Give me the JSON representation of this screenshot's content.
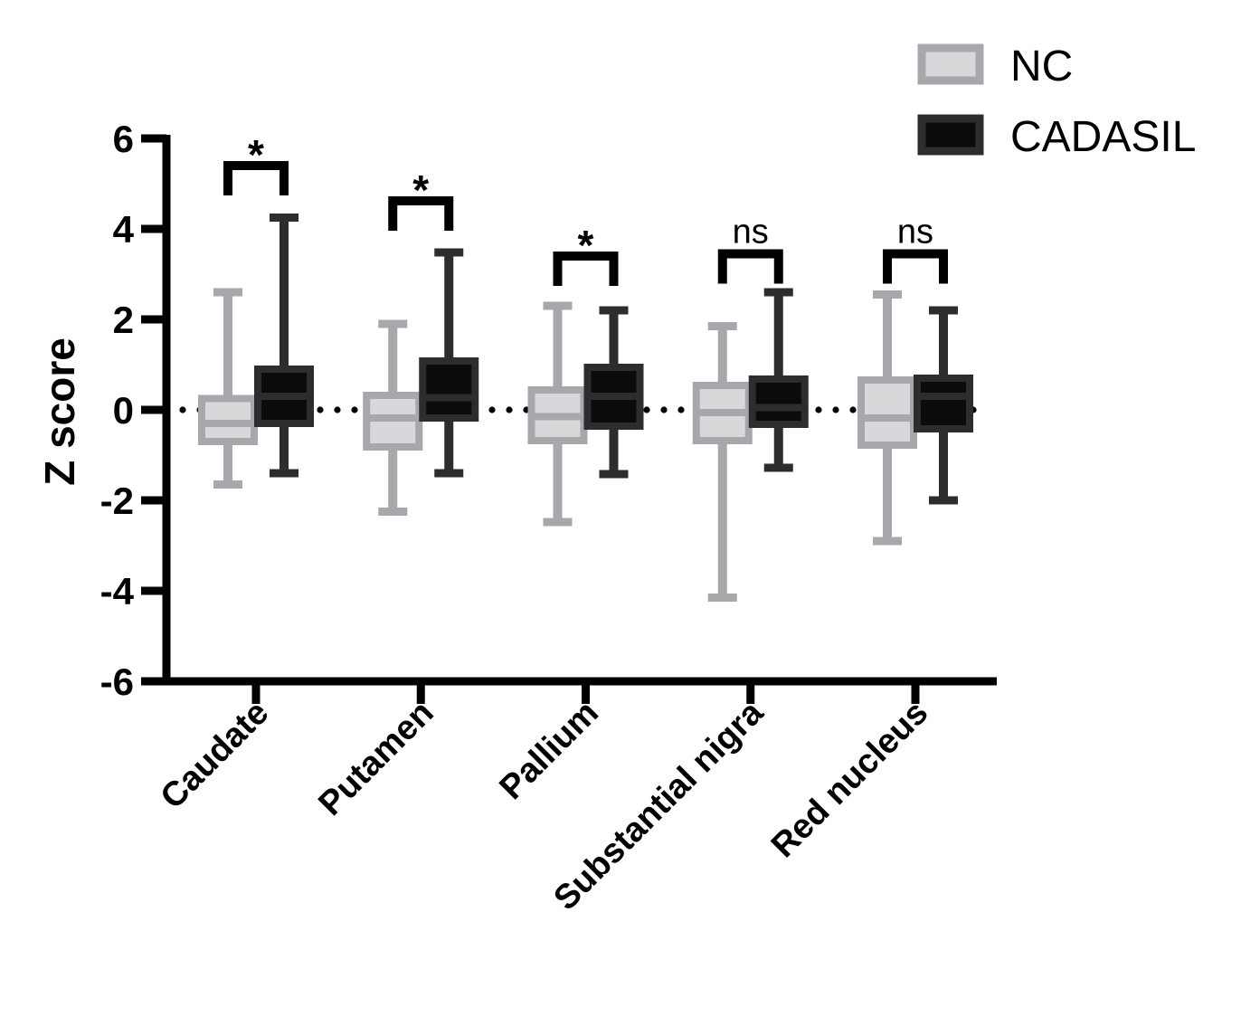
{
  "y_axis": {
    "title": "Z score",
    "ticks": [
      6,
      4,
      2,
      0,
      -2,
      -4,
      -6
    ],
    "min": -6,
    "max": 6
  },
  "legend": {
    "nc": "NC",
    "cadasil": "CADASIL"
  },
  "colors": {
    "nc_fill": "#d8d8da",
    "nc_border": "#a7a7ac",
    "cadasil_fill": "#0b0b0c",
    "cadasil_border": "#2d2d2f",
    "axis": "#000000",
    "dotted_line": "#000000",
    "significance": "#000000",
    "background": "#ffffff"
  },
  "chart_data": {
    "type": "box",
    "title": "",
    "xlabel": "",
    "ylabel": "Z score",
    "ylim": [
      -6,
      6
    ],
    "grid": false,
    "legend_position": "top-right",
    "zero_line": "dotted",
    "categories": [
      "Caudate",
      "Putamen",
      "Pallium",
      "Substantial nigra",
      "Red nucleus"
    ],
    "series": [
      {
        "name": "NC",
        "boxes": [
          {
            "min": -1.65,
            "q1": -0.7,
            "median": -0.3,
            "q3": 0.25,
            "max": 2.6
          },
          {
            "min": -2.25,
            "q1": -0.82,
            "median": -0.18,
            "q3": 0.32,
            "max": 1.9
          },
          {
            "min": -2.48,
            "q1": -0.68,
            "median": -0.15,
            "q3": 0.44,
            "max": 2.3
          },
          {
            "min": -4.15,
            "q1": -0.68,
            "median": -0.06,
            "q3": 0.54,
            "max": 1.85
          },
          {
            "min": -2.9,
            "q1": -0.78,
            "median": -0.18,
            "q3": 0.66,
            "max": 2.55
          }
        ]
      },
      {
        "name": "CADASIL",
        "boxes": [
          {
            "min": -1.4,
            "q1": -0.3,
            "median": 0.3,
            "q3": 0.9,
            "max": 4.25
          },
          {
            "min": -1.4,
            "q1": -0.18,
            "median": 0.27,
            "q3": 1.08,
            "max": 3.48
          },
          {
            "min": -1.42,
            "q1": -0.36,
            "median": 0.3,
            "q3": 0.94,
            "max": 2.2
          },
          {
            "min": -1.28,
            "q1": -0.32,
            "median": 0.05,
            "q3": 0.68,
            "max": 2.6
          },
          {
            "min": -2.0,
            "q1": -0.42,
            "median": 0.3,
            "q3": 0.7,
            "max": 2.2
          }
        ]
      }
    ],
    "significance": [
      {
        "pair": "Caudate",
        "label": "*",
        "bracket_y": 5.4
      },
      {
        "pair": "Putamen",
        "label": "*",
        "bracket_y": 4.62
      },
      {
        "pair": "Pallium",
        "label": "*",
        "bracket_y": 3.4
      },
      {
        "pair": "Substantial nigra",
        "label": "ns",
        "bracket_y": 3.45
      },
      {
        "pair": "Red nucleus",
        "label": "ns",
        "bracket_y": 3.45
      }
    ]
  }
}
